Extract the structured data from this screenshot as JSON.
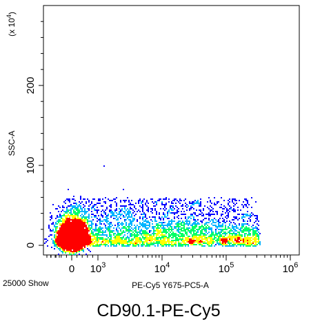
{
  "chart_data": {
    "type": "scatter",
    "plot_style": "density-dot-plot",
    "title": "CD90.1-PE-Cy5",
    "xlabel": "PE-Cy5 Y675-PC5-A",
    "ylabel": "SSC-A",
    "y_multiplier_label": "(x 10",
    "y_multiplier_exp": "4",
    "y_multiplier_close": ")",
    "event_count_label": "25000 Show",
    "x_scale": "biexponential",
    "x_ticks": [
      {
        "value": 0,
        "base": "0",
        "exp": ""
      },
      {
        "value": 1000,
        "base": "10",
        "exp": "3"
      },
      {
        "value": 10000,
        "base": "10",
        "exp": "4"
      },
      {
        "value": 100000,
        "base": "10",
        "exp": "5"
      },
      {
        "value": 1000000,
        "base": "10",
        "exp": "6"
      }
    ],
    "y_ticks": [
      {
        "value": 0,
        "label": "0"
      },
      {
        "value": 100,
        "label": "100"
      },
      {
        "value": 200,
        "label": "200"
      }
    ],
    "ylim": [
      -10,
      300
    ],
    "grid": false,
    "density_colors": [
      "#0000ff",
      "#00b4ff",
      "#00ff66",
      "#ffff00",
      "#ff0000"
    ],
    "populations": [
      {
        "x_center_log": 0.0,
        "y_center": 10,
        "note": "dense negative population near origin"
      },
      {
        "x_span_log": [
          2.5,
          5.5
        ],
        "y_range": [
          0,
          60
        ],
        "note": "sparse tail of events"
      }
    ]
  }
}
